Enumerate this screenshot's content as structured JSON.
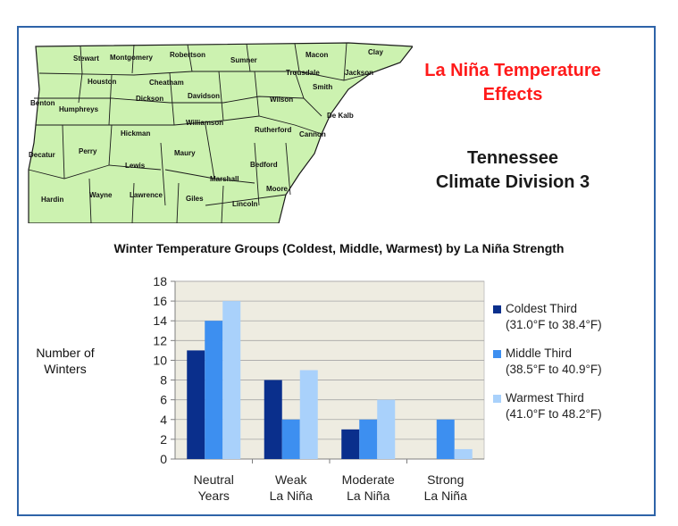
{
  "header": {
    "title_line1": "La Niña Temperature",
    "title_line2": "Effects",
    "subtitle_line1": "Tennessee",
    "subtitle_line2": "Climate Division 3"
  },
  "map": {
    "fill_color": "#ccf2b0",
    "counties": [
      "Stewart",
      "Montgomery",
      "Robertson",
      "Sumner",
      "Macon",
      "Clay",
      "Trousdale",
      "Jackson",
      "Houston",
      "Cheatham",
      "Davidson",
      "Smith",
      "Benton",
      "Dickson",
      "Wilson",
      "Humphreys",
      "De Kalb",
      "Williamson",
      "Hickman",
      "Rutherford",
      "Cannon",
      "Perry",
      "Maury",
      "Decatur",
      "Lewis",
      "Marshall",
      "Bedford",
      "Hardin",
      "Wayne",
      "Lawrence",
      "Giles",
      "Moore",
      "Lincoln"
    ]
  },
  "chart_data": {
    "type": "bar",
    "title": "Winter Temperature Groups (Coldest, Middle, Warmest) by La Niña Strength",
    "ylabel_line1": "Number of",
    "ylabel_line2": "Winters",
    "xlabel": "",
    "ylim": [
      0,
      18
    ],
    "yticks": [
      "0",
      "2",
      "4",
      "6",
      "8",
      "10",
      "12",
      "14",
      "16",
      "18"
    ],
    "grid": true,
    "legend_position": "right",
    "plot_background": "#eeece1",
    "categories": [
      {
        "line1": "Neutral",
        "line2": "Years"
      },
      {
        "line1": "Weak",
        "line2": "La Niña"
      },
      {
        "line1": "Moderate",
        "line2": "La Niña"
      },
      {
        "line1": "Strong",
        "line2": "La Niña"
      }
    ],
    "series": [
      {
        "name": "Coldest Third",
        "range": "(31.0°F to 38.4°F)",
        "color": "#0a2f8c",
        "values": [
          11,
          8,
          3,
          0
        ]
      },
      {
        "name": "Middle Third",
        "range": "(38.5°F to 40.9°F)",
        "color": "#3d8ff0",
        "values": [
          14,
          4,
          4,
          4
        ]
      },
      {
        "name": "Warmest Third",
        "range": "(41.0°F to 48.2°F)",
        "color": "#a9d1fb",
        "values": [
          16,
          9,
          6,
          1
        ]
      }
    ]
  }
}
